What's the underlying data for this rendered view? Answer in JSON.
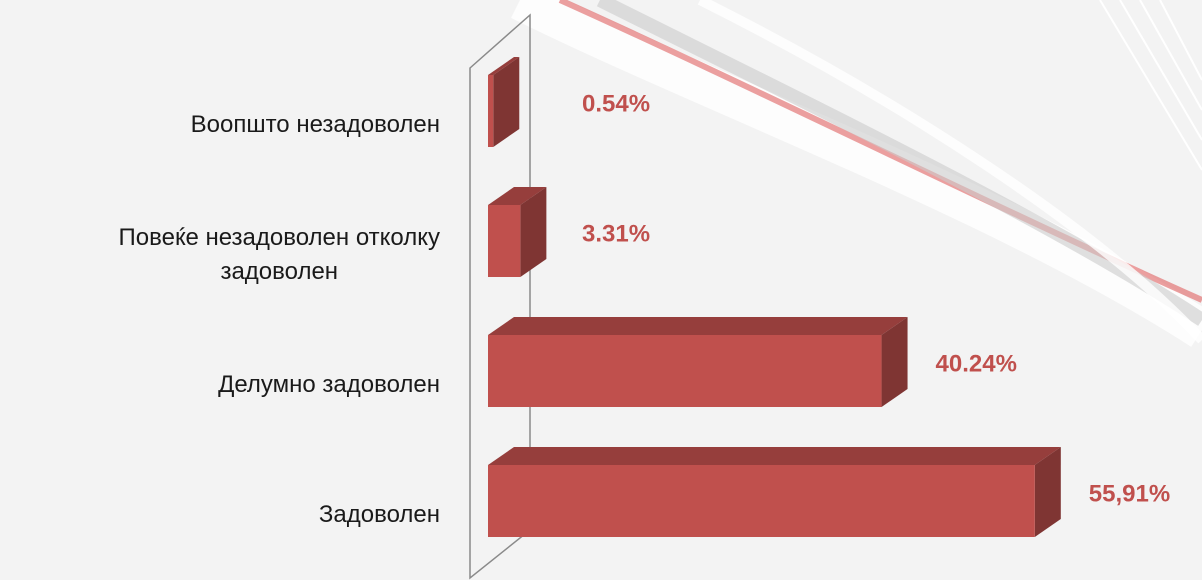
{
  "chart_data": {
    "type": "bar3d-horizontal",
    "categories": [
      "Воопшто незадоволен",
      "Повеќе незадоволен отколку\nзадоволен",
      "Делумно задоволен",
      "Задоволен"
    ],
    "values": [
      0.54,
      3.31,
      40.24,
      55.91
    ],
    "value_labels": [
      "0.54%",
      "3.31%",
      "40.24%",
      "55,91%"
    ],
    "color": "#c0504d"
  }
}
